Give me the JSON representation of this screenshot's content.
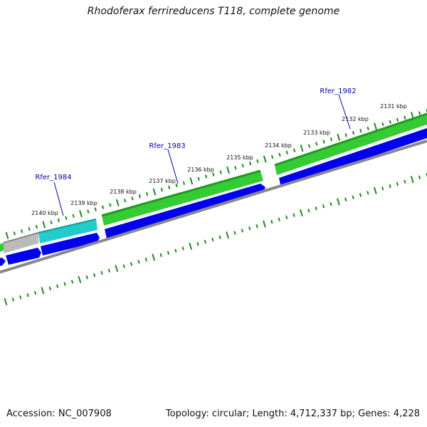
{
  "title": "Rhodoferax ferrireducens T118, complete genome",
  "footer": {
    "accession": "Accession: NC_007908",
    "stats": "Topology: circular; Length: 4,712,337 bp; Genes: 4,228"
  },
  "scale_labels": [
    "2140 kbp",
    "2139 kbp",
    "2138 kbp",
    "2137 kbp",
    "2136 kbp",
    "2135 kbp",
    "2134 kbp",
    "2133 kbp",
    "2132 kbp",
    "2131 kbp"
  ],
  "gene_labels": [
    "Rfer_1984",
    "Rfer_1983",
    "Rfer_1982"
  ],
  "colors": {
    "gene_green": "#33cc33",
    "gene_green_dark": "#229922",
    "gene_cyan": "#22cccc",
    "gene_grey": "#bbbbbb",
    "cds_blue": "#0000ee",
    "backbone": "#888888",
    "tick": "#228822",
    "label_blue": "#0000aa"
  }
}
